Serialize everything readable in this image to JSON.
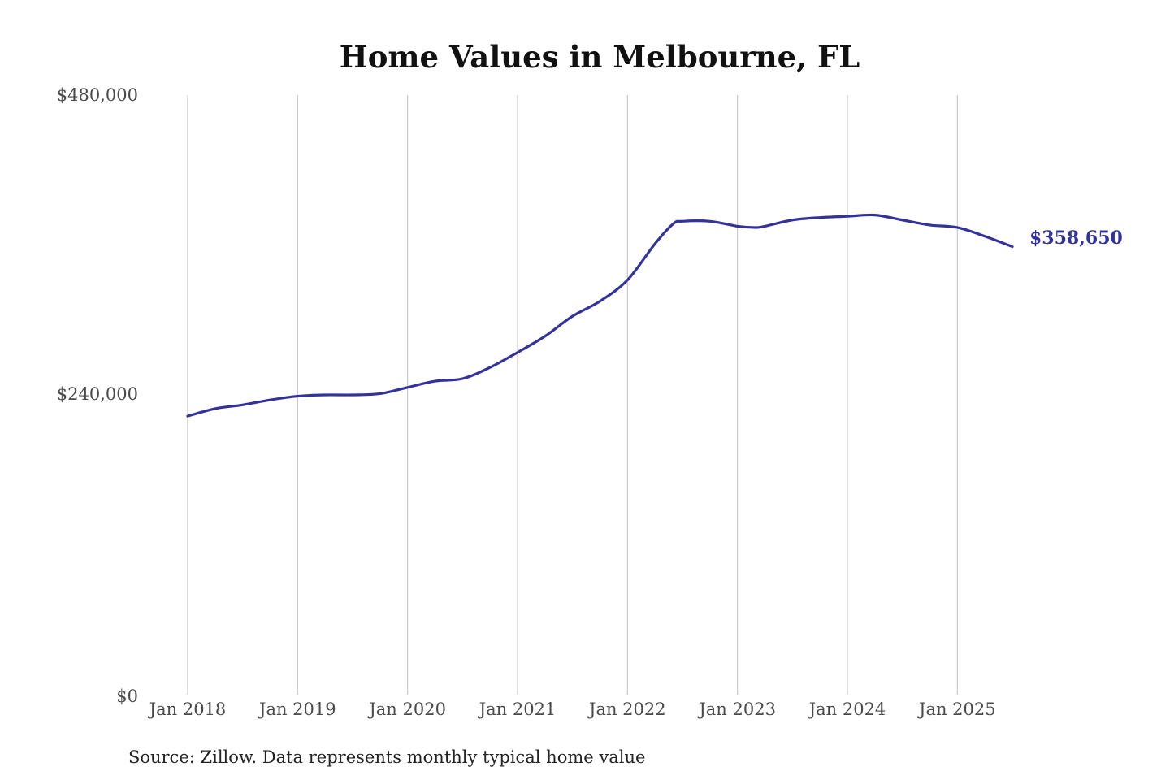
{
  "colors": {
    "line": "#33329a",
    "grid": "#c8c8c8",
    "title": "#111111",
    "tick": "#4a4a4a"
  },
  "chart_data": {
    "type": "line",
    "title": "Home Values in Melbourne, FL",
    "xlabel": "",
    "ylabel": "",
    "source": "Source: Zillow. Data represents monthly typical home value",
    "x_ticks": [
      "Jan 2018",
      "Jan 2019",
      "Jan 2020",
      "Jan 2021",
      "Jan 2022",
      "Jan 2023",
      "Jan 2024",
      "Jan 2025"
    ],
    "y_ticks": [
      "$0",
      "$240,000",
      "$480,000"
    ],
    "ylim": [
      0,
      480000
    ],
    "xlim": [
      "2018-01",
      "2025-07"
    ],
    "vertical_grid": true,
    "horizontal_grid": false,
    "end_label": "$358,650",
    "series": [
      {
        "x": [
          "2018-01",
          "2018-04",
          "2018-07",
          "2018-10",
          "2019-01",
          "2019-04",
          "2019-07",
          "2019-10",
          "2020-01",
          "2020-04",
          "2020-07",
          "2020-10",
          "2021-01",
          "2021-04",
          "2021-07",
          "2021-10",
          "2022-01",
          "2022-04",
          "2022-06",
          "2022-07",
          "2022-10",
          "2023-01",
          "2023-03",
          "2023-04",
          "2023-07",
          "2023-10",
          "2024-01",
          "2024-04",
          "2024-07",
          "2024-10",
          "2025-01",
          "2025-04",
          "2025-07"
        ],
        "values": [
          223000,
          229000,
          232000,
          236000,
          239000,
          240000,
          240000,
          241000,
          246000,
          251000,
          253000,
          262000,
          274000,
          287000,
          303000,
          315000,
          332000,
          361000,
          377000,
          379000,
          379000,
          375000,
          374000,
          375000,
          380000,
          382000,
          383000,
          384000,
          380000,
          376000,
          374000,
          367000,
          358650
        ]
      }
    ]
  }
}
